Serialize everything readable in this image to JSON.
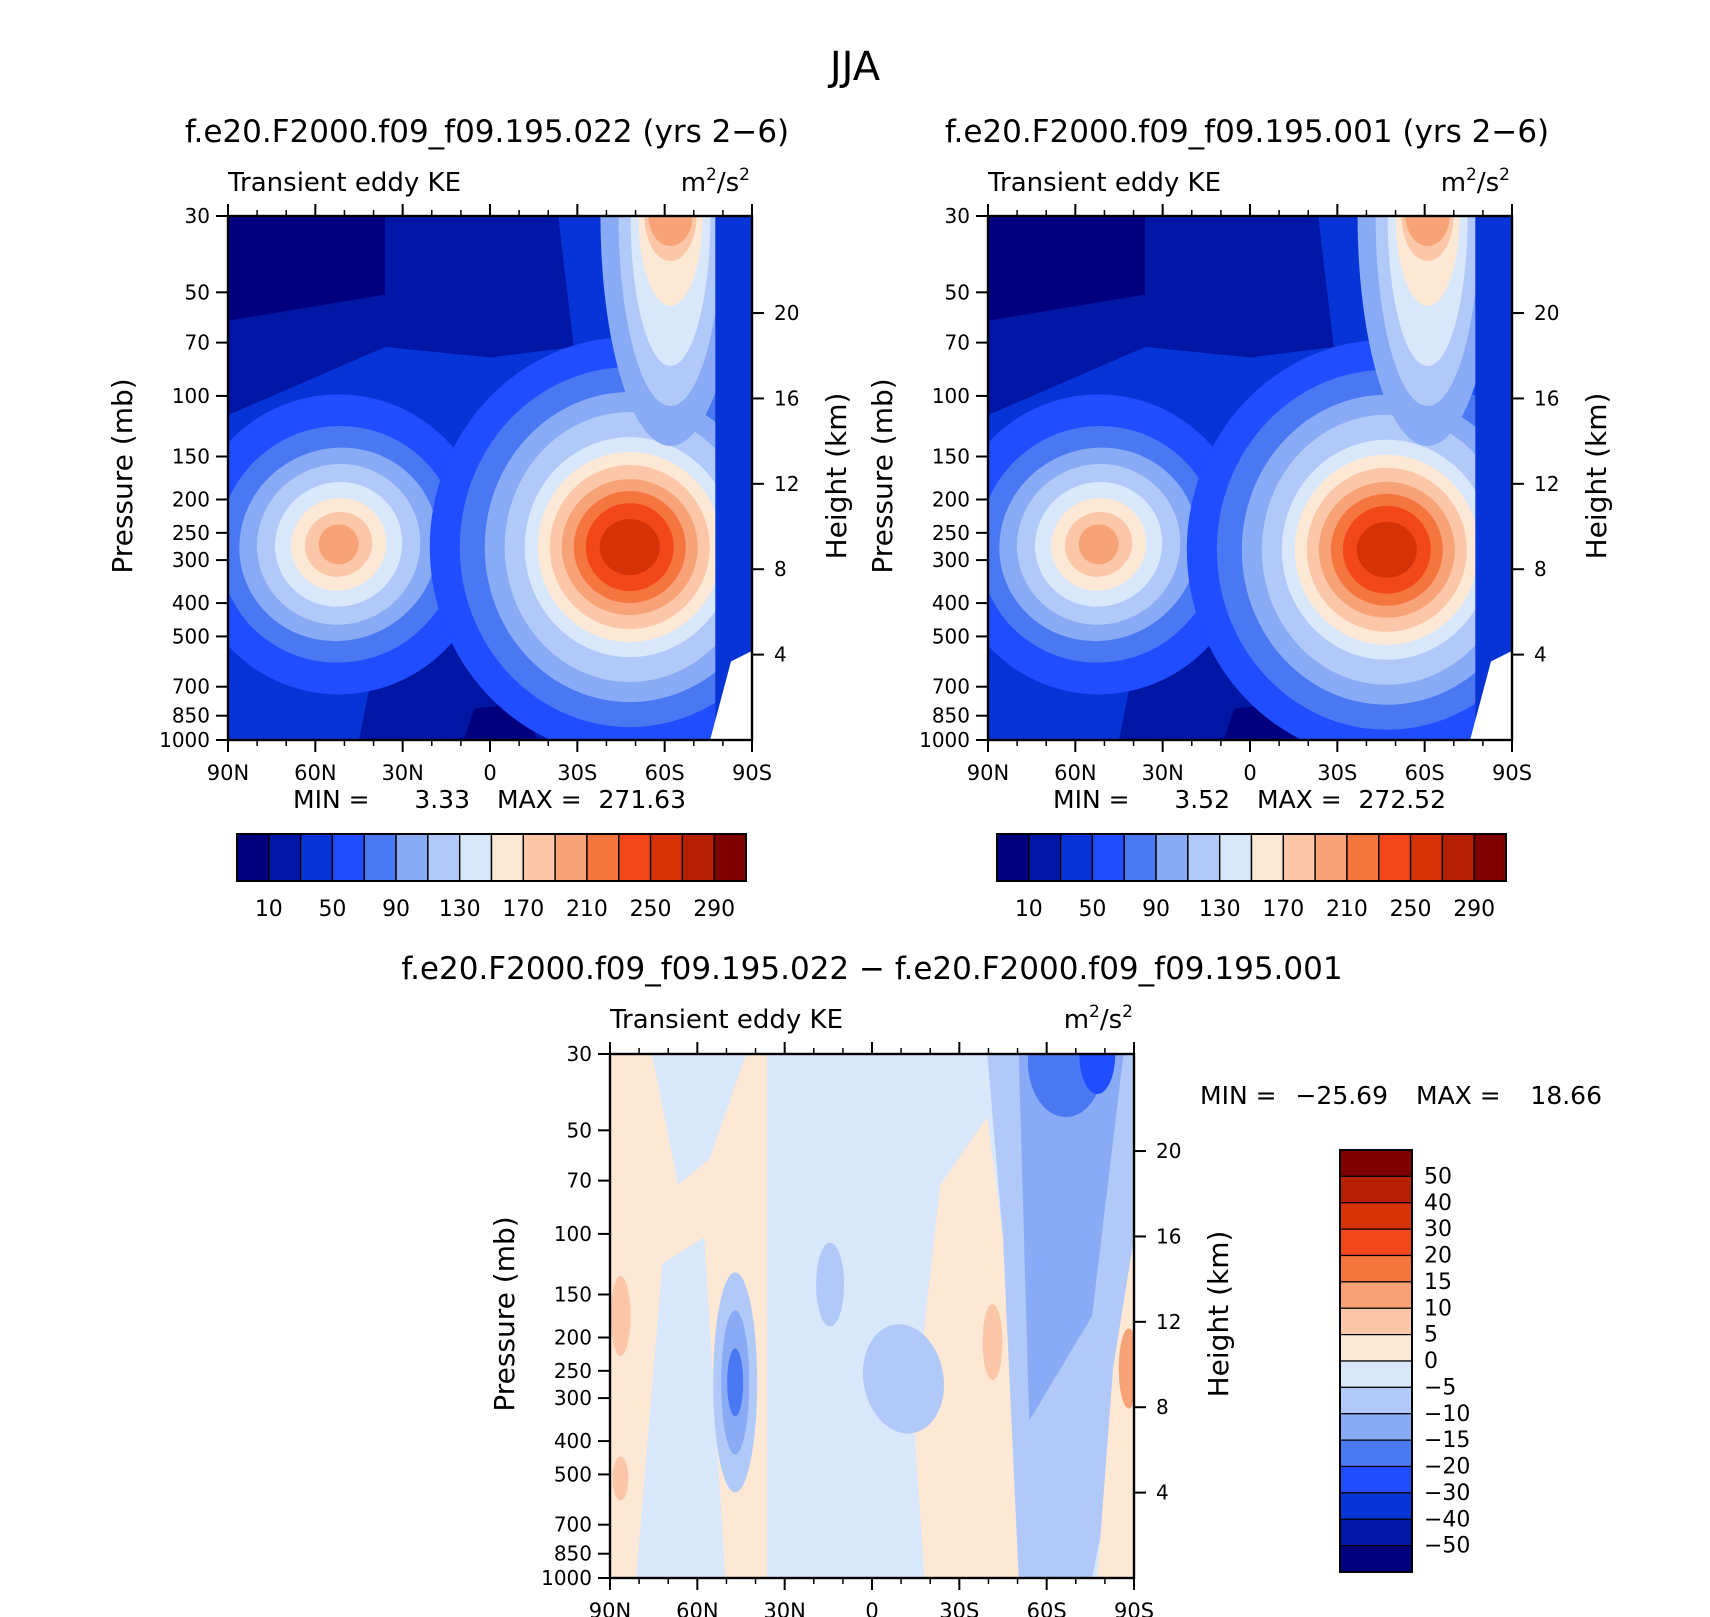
{
  "figure_title": "JJA",
  "colors": {
    "abs_scale": [
      "#00007f",
      "#0017a6",
      "#0634d6",
      "#1f4dff",
      "#4a78f3",
      "#89abf6",
      "#b1c9f8",
      "#d9e7fb",
      "#fde8d6",
      "#fcc6a8",
      "#f8a377",
      "#f5753f",
      "#f24718",
      "#d53307",
      "#b51f02",
      "#7f0000"
    ],
    "diff_scale": [
      "#00007f",
      "#0017a6",
      "#0634d6",
      "#1f4dff",
      "#4a78f3",
      "#89abf6",
      "#b1c9f8",
      "#d9e7fb",
      "#fde8d6",
      "#fcc6a8",
      "#f8a377",
      "#f5753f",
      "#f24718",
      "#d53307",
      "#b51f02",
      "#7f0000"
    ]
  },
  "chart_data": [
    {
      "type": "heatmap",
      "id": "panel-a",
      "title": "f.e20.F2000.f09_f09.195.022 (yrs 2−6)",
      "left_label": "Transient eddy KE",
      "units_base": "m",
      "units_sup": "2",
      "units_tail": "/s",
      "units_sup2": "2",
      "ylabel": "Pressure (mb)",
      "y2label": "Height (km)",
      "x_ticks": [
        "90N",
        "60N",
        "30N",
        "0",
        "30S",
        "60S",
        "90S"
      ],
      "x_values": [
        90,
        60,
        30,
        0,
        -30,
        -60,
        -90
      ],
      "y_ticks": [
        30,
        50,
        70,
        100,
        150,
        200,
        250,
        300,
        400,
        500,
        700,
        850,
        1000
      ],
      "y2_ticks": [
        20,
        16,
        12,
        8,
        4
      ],
      "min_label": "MIN =",
      "min_value": "3.33",
      "max_label": "MAX =",
      "max_value": "271.63",
      "colorbar_labels": [
        "10",
        "50",
        "90",
        "130",
        "170",
        "210",
        "250",
        "290"
      ],
      "features": [
        {
          "lat": 52,
          "p": 270,
          "peak": 175
        },
        {
          "lat": -48,
          "p": 275,
          "peak": 271.63
        },
        {
          "lat": -62,
          "p": 30,
          "peak": 170
        }
      ]
    },
    {
      "type": "heatmap",
      "id": "panel-b",
      "title": "f.e20.F2000.f09_f09.195.001 (yrs 2−6)",
      "left_label": "Transient eddy KE",
      "units_base": "m",
      "units_sup": "2",
      "units_tail": "/s",
      "units_sup2": "2",
      "ylabel": "Pressure (mb)",
      "y2label": "Height (km)",
      "x_ticks": [
        "90N",
        "60N",
        "30N",
        "0",
        "30S",
        "60S",
        "90S"
      ],
      "x_values": [
        90,
        60,
        30,
        0,
        -30,
        -60,
        -90
      ],
      "y_ticks": [
        30,
        50,
        70,
        100,
        150,
        200,
        250,
        300,
        400,
        500,
        700,
        850,
        1000
      ],
      "y2_ticks": [
        20,
        16,
        12,
        8,
        4
      ],
      "min_label": "MIN =",
      "min_value": "3.52",
      "max_label": "MAX =",
      "max_value": "272.52",
      "colorbar_labels": [
        "10",
        "50",
        "90",
        "130",
        "170",
        "210",
        "250",
        "290"
      ],
      "features": [
        {
          "lat": 52,
          "p": 270,
          "peak": 178
        },
        {
          "lat": -47,
          "p": 280,
          "peak": 272.52
        },
        {
          "lat": -61,
          "p": 30,
          "peak": 175
        }
      ]
    },
    {
      "type": "heatmap",
      "id": "panel-diff",
      "title": "f.e20.F2000.f09_f09.195.022 − f.e20.F2000.f09_f09.195.001",
      "left_label": "Transient eddy KE",
      "units_base": "m",
      "units_sup": "2",
      "units_tail": "/s",
      "units_sup2": "2",
      "ylabel": "Pressure (mb)",
      "y2label": "Height (km)",
      "x_ticks": [
        "90N",
        "60N",
        "30N",
        "0",
        "30S",
        "60S",
        "90S"
      ],
      "x_values": [
        90,
        60,
        30,
        0,
        -30,
        -60,
        -90
      ],
      "y_ticks": [
        30,
        50,
        70,
        100,
        150,
        200,
        250,
        300,
        400,
        500,
        700,
        850,
        1000
      ],
      "y2_ticks": [
        20,
        16,
        12,
        8,
        4
      ],
      "min_label": "MIN =",
      "min_value": "−25.69",
      "max_label": "MAX =",
      "max_value": "18.66",
      "colorbar_labels": [
        "50",
        "40",
        "30",
        "20",
        "15",
        "10",
        "5",
        "0",
        "−5",
        "−10",
        "−15",
        "−20",
        "−30",
        "−40",
        "−50"
      ],
      "features": [
        {
          "lat": 47,
          "p": 270,
          "peak": -25.69
        },
        {
          "lat": -85,
          "p": 260,
          "peak": 18.66
        },
        {
          "lat": -70,
          "p": 40,
          "peak": -22
        }
      ]
    }
  ]
}
